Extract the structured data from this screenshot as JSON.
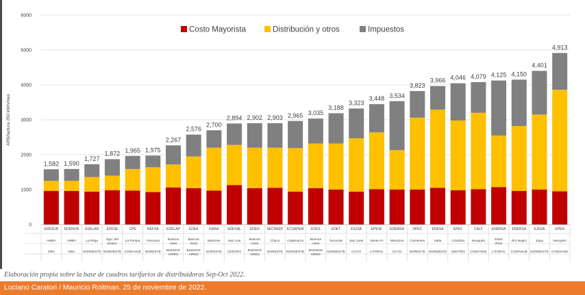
{
  "chart_data": {
    "type": "bar",
    "stacked": true,
    "ylabel": "AR$/factura 250 kWh/mes",
    "ylim": [
      0,
      6000
    ],
    "yticks": [
      0,
      1000,
      2000,
      3000,
      4000,
      5000,
      6000
    ],
    "grid": true,
    "legend_position": "top",
    "categories": [
      "EDESUR",
      "EDENOR",
      "EDELAR",
      "EDESE",
      "CPE",
      "REFSA",
      "EDELAP",
      "EDEA",
      "EMSA",
      "EDESAL",
      "EDEN",
      "SECHEEP",
      "ECSAPEM",
      "EDES",
      "EDET",
      "ESJSA",
      "EPESF",
      "EDEMSA",
      "DPEC",
      "EDESA",
      "EPEC",
      "CALF",
      "ENERSA",
      "EDERSA",
      "EJESA",
      "EPEN"
    ],
    "province": [
      "AMBA",
      "AMBA",
      "La Rioja",
      "Sgo. del Estero",
      "La Pampa",
      "Formosa",
      "Buenos Aires",
      "Buenos Aires",
      "Misiones",
      "San Luis",
      "Buenos Aires",
      "Chaco",
      "Catamarca",
      "Buenos Aires",
      "Tucumán",
      "San Juan",
      "Santa Fe",
      "Mendoza",
      "Corrientes",
      "Salta",
      "Córdoba",
      "Neuquén",
      "Entre Ríos",
      "Río Negro",
      "Jujuy",
      "Neuquén"
    ],
    "region": [
      "GBA",
      "GBA",
      "NORDESTE",
      "NORDESTE",
      "COMAHUE",
      "NORESTE",
      "BUENOS AIRES",
      "BUENOS AIRES",
      "NORESTE",
      "CENTRO",
      "BUENOS AIRES",
      "NORESTE",
      "NORDESTE",
      "BUENOS AIRES",
      "NORDESTE",
      "CUYO",
      "LITORAL",
      "CUYO",
      "NORESTE",
      "NORDESTE",
      "CENTRO",
      "COMAHUE",
      "LITORAL",
      "COMAHUE",
      "NORDESTE",
      "COMAHUE"
    ],
    "series": [
      {
        "name": "Costo Mayorista",
        "color": "#c00000",
        "values": [
          960,
          960,
          940,
          980,
          970,
          930,
          1060,
          1040,
          970,
          1130,
          1040,
          1050,
          940,
          1040,
          1000,
          940,
          1010,
          1000,
          1000,
          1050,
          980,
          1010,
          1070,
          960,
          1000,
          950
        ]
      },
      {
        "name": "Distribución y otros",
        "color": "#ffc000",
        "values": [
          290,
          290,
          420,
          420,
          620,
          710,
          660,
          910,
          1230,
          1150,
          1160,
          1150,
          1250,
          1280,
          1320,
          1530,
          1630,
          1130,
          2060,
          2240,
          2000,
          2190,
          1480,
          1860,
          2150,
          2910
        ]
      },
      {
        "name": "Impuestos",
        "color": "#808080",
        "values": [
          332,
          340,
          367,
          472,
          375,
          335,
          547,
          626,
          500,
          614,
          702,
          703,
          775,
          715,
          868,
          853,
          808,
          1404,
          763,
          676,
          1066,
          879,
          1575,
          1330,
          1251,
          1053
        ]
      }
    ],
    "totals": [
      "1,582",
      "1,590",
      "1,727",
      "1,872",
      "1,965",
      "1,975",
      "2,267",
      "2,576",
      "2,700",
      "2,894",
      "2,902",
      "2,903",
      "2,965",
      "3,035",
      "3,188",
      "3,323",
      "3,448",
      "3,534",
      "3,823",
      "3,966",
      "4,046",
      "4,079",
      "4,125",
      "4,150",
      "4,401",
      "4,913"
    ]
  },
  "caption": "Elaboración propia sobre la base de cuadros tarifarios de distribuidoras Sep-Oct 2022.",
  "footer": "Luciano Caratori / Mauricio Roitman. 25 de noviembre de 2022."
}
